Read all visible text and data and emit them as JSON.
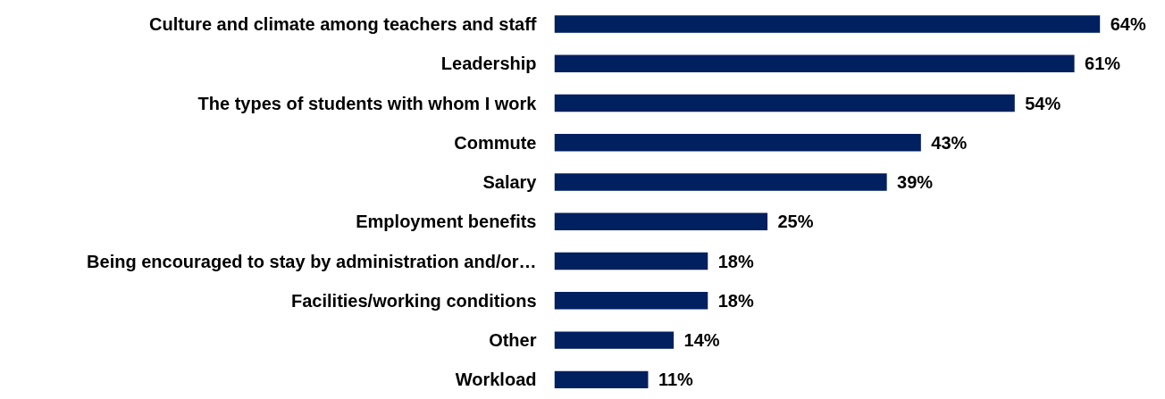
{
  "chart_data": {
    "type": "bar",
    "orientation": "horizontal",
    "categories": [
      "Culture and climate among teachers and staff",
      "Leadership",
      "The types of students with whom I work",
      "Commute",
      "Salary",
      "Employment benefits",
      "Being encouraged to stay by administration and/or…",
      "Facilities/working conditions",
      "Other",
      "Workload"
    ],
    "values": [
      64,
      61,
      54,
      43,
      39,
      25,
      18,
      18,
      14,
      11
    ],
    "value_labels": [
      "64%",
      "61%",
      "54%",
      "43%",
      "39%",
      "25%",
      "18%",
      "18%",
      "14%",
      "11%"
    ],
    "color": "#002060",
    "tick_labels": "y",
    "grid": false
  }
}
